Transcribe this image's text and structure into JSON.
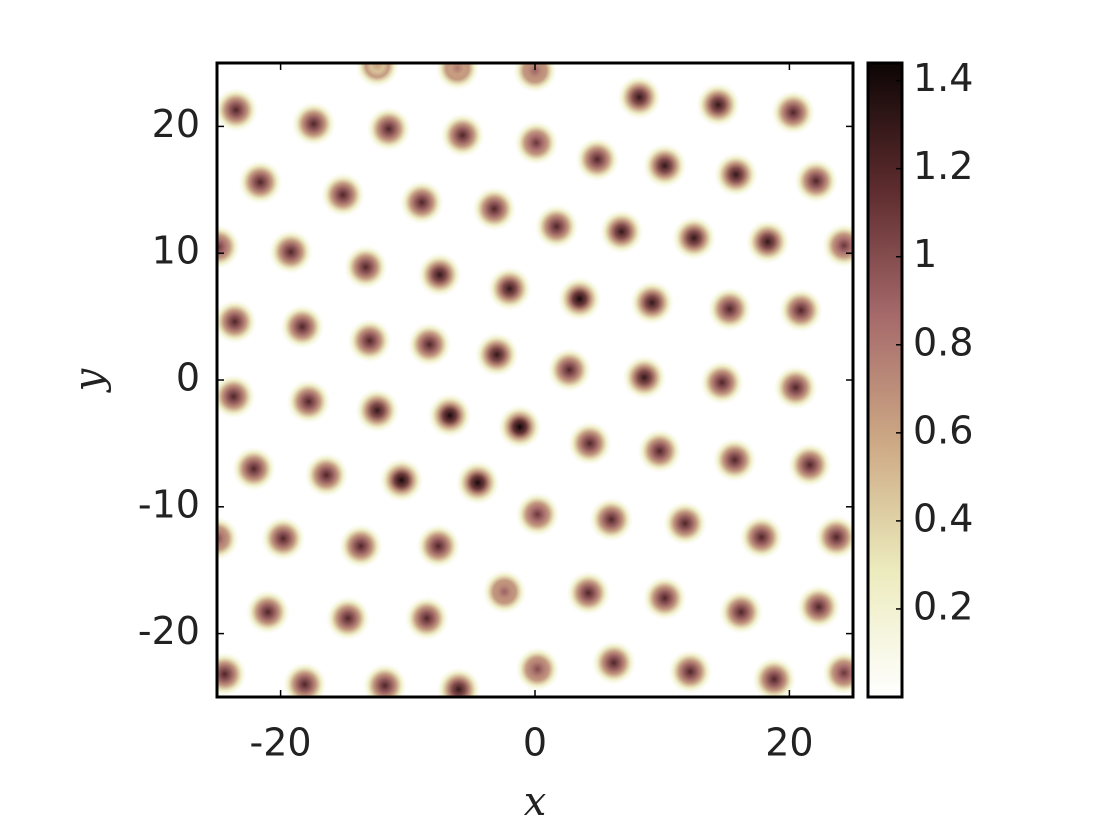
{
  "chart_data": {
    "type": "heatmap",
    "xlabel": "x",
    "ylabel": "y",
    "x": [
      -23.5,
      -17.4,
      -11.5,
      -5.7,
      0.1,
      8.2,
      14.4,
      20.3,
      -12.4,
      -6.1,
      0,
      -21.6,
      -15.1,
      -8.9,
      -3.2,
      4.9,
      10.2,
      15.8,
      22.1,
      -24.9,
      -19.2,
      -13.3,
      -7.5,
      -2.0,
      1.7,
      6.8,
      12.5,
      18.3,
      24.3,
      -23.6,
      -18.3,
      -13.0,
      -8.3,
      -3.0,
      3.5,
      9.2,
      15.3,
      20.9,
      -23.7,
      -17.8,
      -12.4,
      -6.7,
      -1.2,
      2.7,
      8.6,
      14.7,
      20.5,
      -22.1,
      -16.4,
      -10.5,
      -4.5,
      4.3,
      9.8,
      15.7,
      21.6,
      -25.0,
      -19.8,
      -13.7,
      -7.6,
      0.2,
      6.0,
      11.8,
      17.8,
      23.7,
      -21.0,
      -14.7,
      -8.5,
      -2.4,
      4.2,
      10.2,
      16.2,
      22.3,
      -24.4,
      -18.1,
      -11.8,
      -6.0,
      0.2,
      6.2,
      12.2,
      18.8,
      24.3
    ],
    "y": [
      21.3,
      20.2,
      19.8,
      19.3,
      18.7,
      22.3,
      21.7,
      21.1,
      24.8,
      24.6,
      24.4,
      15.6,
      14.6,
      14.0,
      13.5,
      17.4,
      16.9,
      16.2,
      15.7,
      10.5,
      10.1,
      8.9,
      8.3,
      7.2,
      12.1,
      11.7,
      11.2,
      10.9,
      10.6,
      4.6,
      4.2,
      3.1,
      2.8,
      2.0,
      6.4,
      6.1,
      5.6,
      5.5,
      -1.3,
      -1.7,
      -2.4,
      -2.8,
      -3.7,
      0.8,
      0.2,
      -0.2,
      -0.6,
      -7.0,
      -7.5,
      -7.9,
      -8.1,
      -5.0,
      -5.6,
      -6.3,
      -6.7,
      -12.5,
      -12.5,
      -13.1,
      -13.1,
      -10.6,
      -11.0,
      -11.3,
      -12.4,
      -12.4,
      -18.3,
      -18.8,
      -18.8,
      -16.7,
      -16.8,
      -17.2,
      -18.3,
      -17.9,
      -23.2,
      -24.0,
      -24.1,
      -24.4,
      -22.8,
      -22.3,
      -23.0,
      -23.6,
      -23.1
    ],
    "values": [
      1.2,
      1.2,
      1.2,
      1.2,
      1.1,
      1.3,
      1.3,
      1.2,
      0.6,
      0.8,
      0.9,
      1.2,
      1.2,
      1.2,
      1.2,
      1.2,
      1.3,
      1.3,
      1.2,
      1.1,
      1.2,
      1.2,
      1.3,
      1.3,
      1.2,
      1.3,
      1.3,
      1.3,
      1.1,
      1.2,
      1.2,
      1.2,
      1.2,
      1.3,
      1.4,
      1.3,
      1.2,
      1.2,
      1.2,
      1.2,
      1.3,
      1.4,
      1.44,
      1.2,
      1.3,
      1.2,
      1.2,
      1.2,
      1.2,
      1.4,
      1.4,
      1.2,
      1.2,
      1.2,
      1.2,
      1.0,
      1.2,
      1.2,
      1.2,
      1.1,
      1.2,
      1.2,
      1.2,
      1.2,
      1.2,
      1.2,
      1.2,
      0.9,
      1.2,
      1.2,
      1.2,
      1.2,
      1.2,
      1.2,
      1.2,
      1.3,
      1.0,
      1.2,
      1.2,
      1.2,
      1.1
    ],
    "xlim": [
      -25,
      25
    ],
    "ylim": [
      -25,
      25
    ],
    "xticks": [
      -20,
      0,
      20
    ],
    "yticks": [
      -20,
      -10,
      0,
      10,
      20
    ],
    "clim": [
      0,
      1.44
    ],
    "cticks": [
      0.2,
      0.4,
      0.6,
      0.8,
      1,
      1.2,
      1.4
    ],
    "colormap": [
      "#ffffff",
      "#ecebbd",
      "#cda985",
      "#a66a6b",
      "#5e2c2e",
      "#0d0505"
    ],
    "grid": false
  }
}
